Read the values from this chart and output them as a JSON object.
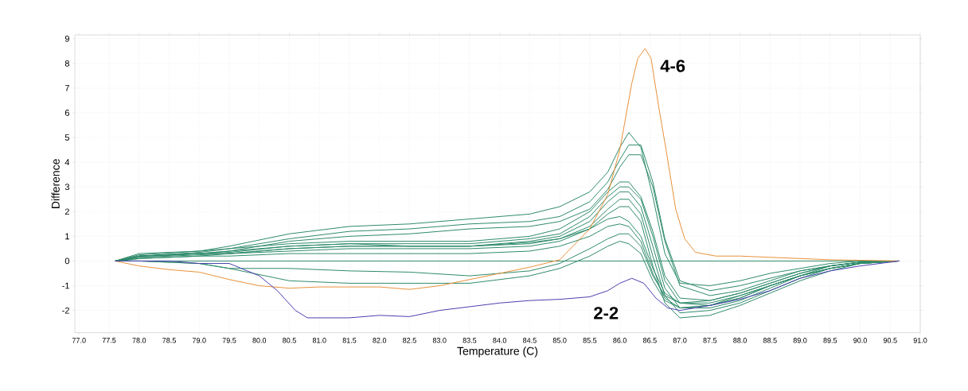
{
  "chart_data": {
    "type": "line",
    "xlabel": "Temperature (C)",
    "ylabel": "Difference",
    "xlim": [
      76.93,
      91.0
    ],
    "ylim": [
      -2.9,
      9.15
    ],
    "xticks": [
      {
        "value": 77.0,
        "label": "77.0"
      },
      {
        "value": 77.5,
        "label": "77.5"
      },
      {
        "value": 78.0,
        "label": "78.0"
      },
      {
        "value": 78.5,
        "label": "78.5"
      },
      {
        "value": 79.0,
        "label": "79.0"
      },
      {
        "value": 79.5,
        "label": "79.5"
      },
      {
        "value": 80.0,
        "label": "80.0"
      },
      {
        "value": 80.5,
        "label": "80.5"
      },
      {
        "value": 81.0,
        "label": "81.0"
      },
      {
        "value": 81.5,
        "label": "81.5"
      },
      {
        "value": 82.0,
        "label": "82.0"
      },
      {
        "value": 82.5,
        "label": "82.5"
      },
      {
        "value": 83.0,
        "label": "83.0"
      },
      {
        "value": 83.5,
        "label": "83.5"
      },
      {
        "value": 84.0,
        "label": "84.0"
      },
      {
        "value": 84.5,
        "label": "84.5"
      },
      {
        "value": 85.0,
        "label": "85.0"
      },
      {
        "value": 85.5,
        "label": "85.5"
      },
      {
        "value": 86.0,
        "label": "86.0"
      },
      {
        "value": 86.5,
        "label": "86.5"
      },
      {
        "value": 87.0,
        "label": "87.0"
      },
      {
        "value": 87.5,
        "label": "87.5"
      },
      {
        "value": 88.0,
        "label": "88.0"
      },
      {
        "value": 88.5,
        "label": "88.5"
      },
      {
        "value": 89.0,
        "label": "89.0"
      },
      {
        "value": 89.5,
        "label": "89.5"
      },
      {
        "value": 90.0,
        "label": "90.0"
      },
      {
        "value": 90.5,
        "label": "90.5"
      },
      {
        "value": 91.0,
        "label": "91.0"
      }
    ],
    "yticks": [
      -2,
      -1,
      0,
      1,
      2,
      3,
      4,
      5,
      6,
      7,
      8,
      9
    ],
    "grid": true,
    "x": [
      77.6,
      78.0,
      79.0,
      79.5,
      80.5,
      81.5,
      82.5,
      83.5,
      84.5,
      85.0,
      85.5,
      85.8,
      86.0,
      86.15,
      86.35,
      86.55,
      86.75,
      87.0,
      87.5,
      88.0,
      88.5,
      89.0,
      89.5,
      90.0,
      90.65
    ],
    "series": [
      {
        "color": "#2e8b6a",
        "x": [
          77.6,
          90.65
        ],
        "values": [
          0,
          0
        ]
      },
      {
        "color": "#2e8b6a",
        "values": [
          0,
          0.25,
          0.4,
          0.6,
          1.1,
          1.4,
          1.5,
          1.7,
          1.9,
          2.2,
          2.8,
          3.6,
          4.6,
          5.2,
          4.6,
          2.6,
          0.3,
          -0.9,
          -1.0,
          -0.8,
          -0.5,
          -0.3,
          -0.1,
          0,
          0
        ]
      },
      {
        "color": "#2e8b6a",
        "values": [
          0,
          0.2,
          0.35,
          0.5,
          0.9,
          1.2,
          1.3,
          1.5,
          1.6,
          1.8,
          2.4,
          3.2,
          4.1,
          4.7,
          4.7,
          3.2,
          0.9,
          -0.8,
          -1.2,
          -1.0,
          -0.7,
          -0.4,
          -0.2,
          -0.05,
          0
        ]
      },
      {
        "color": "#2e8b6a",
        "values": [
          0,
          0.2,
          0.3,
          0.4,
          0.8,
          1.0,
          1.1,
          1.3,
          1.4,
          1.6,
          2.1,
          2.9,
          3.8,
          4.3,
          4.3,
          3.0,
          0.8,
          -1.0,
          -1.4,
          -1.2,
          -0.8,
          -0.4,
          -0.2,
          -0.05,
          0
        ]
      },
      {
        "color": "#2e8b6a",
        "values": [
          0,
          0.3,
          0.4,
          0.5,
          0.7,
          0.8,
          0.8,
          0.8,
          1.0,
          1.3,
          2.0,
          2.8,
          3.2,
          3.2,
          2.6,
          1.2,
          -0.6,
          -1.5,
          -1.6,
          -1.3,
          -0.9,
          -0.5,
          -0.2,
          -0.05,
          0
        ]
      },
      {
        "color": "#2e8b6a",
        "values": [
          0,
          0.2,
          0.3,
          0.4,
          0.6,
          0.7,
          0.7,
          0.7,
          0.9,
          1.1,
          1.8,
          2.6,
          3.0,
          3.0,
          2.5,
          1.0,
          -0.8,
          -1.7,
          -1.8,
          -1.5,
          -1.0,
          -0.6,
          -0.3,
          -0.1,
          0
        ]
      },
      {
        "color": "#2e8b6a",
        "values": [
          0,
          0.2,
          0.3,
          0.35,
          0.6,
          0.7,
          0.6,
          0.6,
          0.8,
          1.0,
          1.6,
          2.4,
          2.8,
          2.8,
          2.2,
          0.6,
          -1.1,
          -1.9,
          -1.9,
          -1.6,
          -1.1,
          -0.6,
          -0.3,
          -0.1,
          0
        ]
      },
      {
        "color": "#2e8b6a",
        "values": [
          0,
          0.15,
          0.3,
          0.3,
          0.5,
          0.6,
          0.6,
          0.6,
          0.75,
          0.9,
          1.4,
          2.1,
          2.5,
          2.5,
          1.9,
          0.2,
          -1.4,
          -2.1,
          -2.0,
          -1.7,
          -1.2,
          -0.7,
          -0.3,
          -0.1,
          0
        ]
      },
      {
        "color": "#2e8b6a",
        "values": [
          0,
          0.1,
          0.2,
          0.3,
          0.4,
          0.5,
          0.5,
          0.5,
          0.6,
          0.8,
          1.3,
          1.9,
          2.2,
          2.2,
          1.6,
          -0.2,
          -1.7,
          -2.3,
          -2.2,
          -1.8,
          -1.3,
          -0.8,
          -0.4,
          -0.1,
          0
        ]
      },
      {
        "color": "#2e8b6a",
        "x": [
          77.65,
          78.0,
          79.0,
          79.5,
          80.5,
          81.5,
          82.5,
          83.5,
          84.5,
          85.0,
          85.5,
          85.8,
          86.0,
          86.15,
          86.35,
          86.55,
          86.75,
          87.0,
          87.5,
          88.0,
          88.5,
          89.0,
          89.5,
          90.0,
          90.6
        ],
        "values": [
          0,
          0.15,
          0.25,
          0.3,
          0.5,
          0.6,
          0.6,
          0.6,
          0.7,
          0.9,
          1.3,
          1.7,
          1.8,
          1.6,
          1.0,
          -0.3,
          -1.3,
          -1.7,
          -1.7,
          -1.4,
          -1.0,
          -0.6,
          -0.3,
          -0.1,
          0
        ]
      },
      {
        "color": "#2e8b6a",
        "x": [
          77.7,
          78.0,
          79.0,
          79.5,
          80.5,
          81.5,
          82.5,
          83.5,
          84.5,
          85.0,
          85.5,
          85.8,
          86.0,
          86.15,
          86.35,
          86.55,
          86.75,
          87.0,
          87.5,
          88.0,
          88.5,
          89.0,
          89.5,
          90.0,
          90.55
        ],
        "values": [
          0,
          0.1,
          0.2,
          0.2,
          0.3,
          0.3,
          0.3,
          0.3,
          0.4,
          0.6,
          1.0,
          1.4,
          1.5,
          1.4,
          0.8,
          -0.5,
          -1.5,
          -1.9,
          -1.8,
          -1.5,
          -1.0,
          -0.6,
          -0.3,
          -0.1,
          0
        ]
      },
      {
        "color": "#2e8b6a",
        "values": [
          0,
          0.0,
          -0.1,
          -0.3,
          -0.3,
          -0.4,
          -0.45,
          -0.6,
          -0.4,
          -0.1,
          0.5,
          0.9,
          1.1,
          1.1,
          0.6,
          -0.6,
          -1.4,
          -1.7,
          -1.6,
          -1.3,
          -0.9,
          -0.5,
          -0.2,
          -0.05,
          0
        ]
      },
      {
        "color": "#2e8b6a",
        "x": [
          77.75,
          78.0,
          79.0,
          79.5,
          80.5,
          81.5,
          82.5,
          83.5,
          84.5,
          85.0,
          85.5,
          85.8,
          86.0,
          86.15,
          86.35,
          86.55,
          86.75,
          87.0,
          87.5,
          88.0,
          88.5,
          89.0,
          89.5,
          90.0,
          90.5
        ],
        "values": [
          0,
          0.0,
          -0.1,
          -0.3,
          -0.8,
          -0.9,
          -0.9,
          -0.9,
          -0.6,
          -0.3,
          0.2,
          0.6,
          0.8,
          0.7,
          0.3,
          -0.8,
          -1.6,
          -1.9,
          -1.8,
          -1.4,
          -1.0,
          -0.6,
          -0.2,
          -0.05,
          0
        ]
      },
      {
        "color": "#e8913a",
        "x": [
          77.6,
          78.0,
          78.5,
          79.0,
          79.5,
          80.0,
          80.5,
          81.0,
          82.0,
          82.5,
          83.0,
          83.5,
          84.0,
          84.5,
          85.0,
          85.5,
          85.8,
          86.0,
          86.2,
          86.3,
          86.42,
          86.52,
          86.65,
          86.77,
          86.93,
          87.08,
          87.26,
          87.6,
          88.0,
          88.5,
          89.0,
          89.5,
          90.0,
          90.65
        ],
        "values": [
          0,
          -0.2,
          -0.35,
          -0.45,
          -0.75,
          -1.0,
          -1.1,
          -1.05,
          -1.05,
          -1.15,
          -1.0,
          -0.75,
          -0.5,
          -0.25,
          0.05,
          1.3,
          2.7,
          4.5,
          7.2,
          8.2,
          8.6,
          8.2,
          6.2,
          4.5,
          2.1,
          0.9,
          0.35,
          0.2,
          0.2,
          0.15,
          0.1,
          0.05,
          0.03,
          0
        ]
      },
      {
        "color": "#4a3fb0",
        "x": [
          77.6,
          78.5,
          79.0,
          79.5,
          80.0,
          80.3,
          80.6,
          80.8,
          81.5,
          82.0,
          82.5,
          83.0,
          83.5,
          84.0,
          84.5,
          85.0,
          85.5,
          85.8,
          86.0,
          86.2,
          86.4,
          86.6,
          86.8,
          87.0,
          87.5,
          88.0,
          88.5,
          89.0,
          89.5,
          90.0,
          90.65
        ],
        "values": [
          0,
          0,
          -0.1,
          -0.1,
          -0.6,
          -1.2,
          -2.0,
          -2.3,
          -2.3,
          -2.2,
          -2.25,
          -2.0,
          -1.85,
          -1.7,
          -1.6,
          -1.55,
          -1.45,
          -1.2,
          -0.9,
          -0.7,
          -0.9,
          -1.5,
          -1.9,
          -2.0,
          -1.8,
          -1.55,
          -1.2,
          -0.7,
          -0.4,
          -0.2,
          0
        ]
      }
    ],
    "annotations": [
      "4-6",
      "2-2"
    ]
  }
}
